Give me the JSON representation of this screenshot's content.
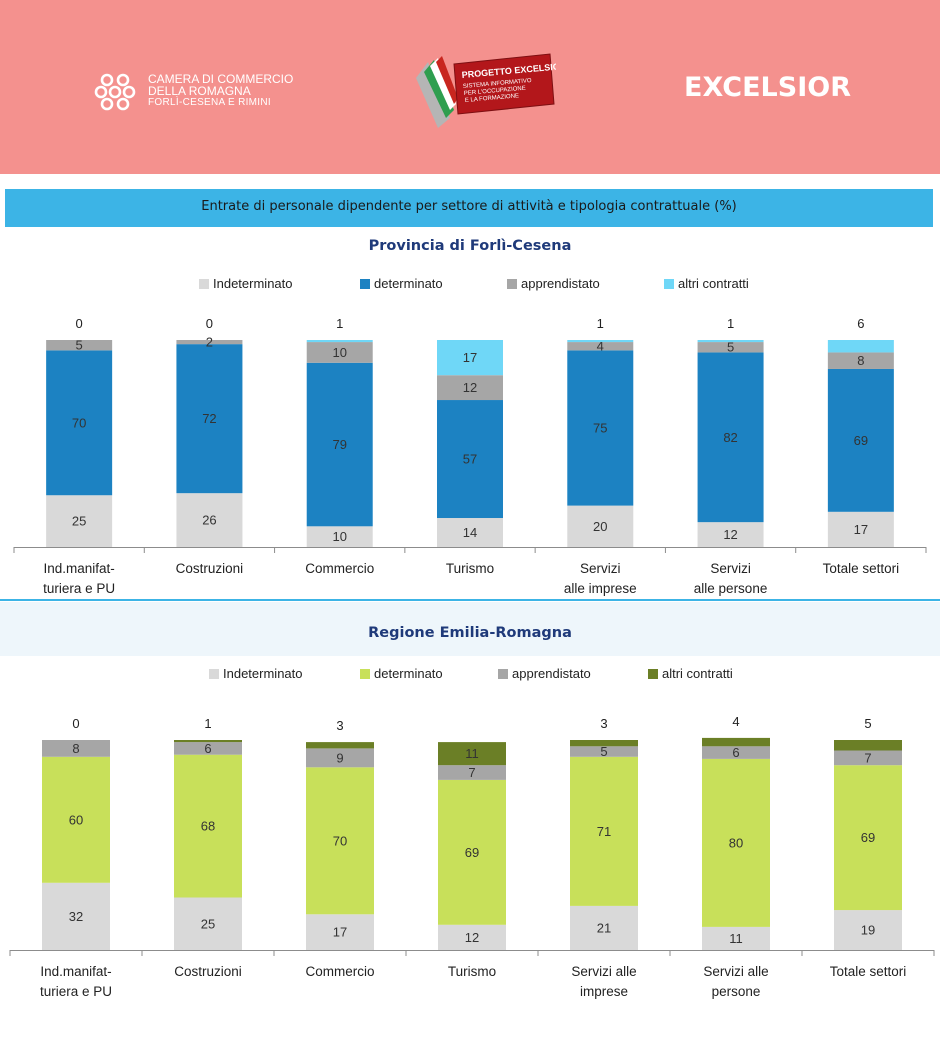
{
  "header": {
    "camera_line1": "CAMERA DI COMMERCIO",
    "camera_line2": "DELLA ROMAGNA",
    "camera_line3": "FORLÌ-CESENA E RIMINI",
    "excelsior_logo_title": "PROGETTO EXCELSIOR",
    "excelsior_logo_sub1": "SISTEMA INFORMATIVO",
    "excelsior_logo_sub2": "PER L'OCCUPAZIONE",
    "excelsior_logo_sub3": "E LA FORMAZIONE",
    "brand": "EXCELSIOR",
    "colors": {
      "header_bg": "#f4918e",
      "banner_bg": "#3cb4e6",
      "title_blue": "#1f3a7a"
    }
  },
  "banner": {
    "text": "Entrate di personale dipendente per settore di attività e tipologia contrattuale (%)"
  },
  "chart_data": [
    {
      "type": "bar",
      "stacked": true,
      "title": "Provincia di Forlì-Cesena",
      "categories": [
        [
          "Ind.manifat-",
          "turiera e PU"
        ],
        [
          "Costruzioni"
        ],
        [
          "Commercio"
        ],
        [
          "Turismo"
        ],
        [
          "Servizi",
          "alle imprese"
        ],
        [
          "Servizi",
          "alle persone"
        ],
        [
          "Totale settori"
        ]
      ],
      "ylim": [
        0,
        100
      ],
      "legend_position": "top",
      "series": [
        {
          "name": "Indeterminato",
          "color": "#d9d9d9",
          "values": [
            25,
            26,
            10,
            14,
            20,
            12,
            17
          ]
        },
        {
          "name": "determinato",
          "color": "#1c82c2",
          "values": [
            70,
            72,
            79,
            57,
            75,
            82,
            69
          ]
        },
        {
          "name": "apprendistato",
          "color": "#a6a6a6",
          "values": [
            5,
            2,
            10,
            12,
            4,
            5,
            8
          ]
        },
        {
          "name": "altri contratti",
          "color": "#6fd7f7",
          "values": [
            0,
            0,
            1,
            17,
            1,
            1,
            6
          ]
        }
      ]
    },
    {
      "type": "bar",
      "stacked": true,
      "title": "Regione Emilia-Romagna",
      "categories": [
        [
          "Ind.manifat-",
          "turiera e PU"
        ],
        [
          "Costruzioni"
        ],
        [
          "Commercio"
        ],
        [
          "Turismo"
        ],
        [
          "Servizi alle",
          "imprese"
        ],
        [
          "Servizi alle",
          "persone"
        ],
        [
          "Totale settori"
        ]
      ],
      "ylim": [
        0,
        100
      ],
      "legend_position": "top",
      "series": [
        {
          "name": "Indeterminato",
          "color": "#d9d9d9",
          "values": [
            32,
            25,
            17,
            12,
            21,
            11,
            19
          ]
        },
        {
          "name": "determinato",
          "color": "#c8e05a",
          "values": [
            60,
            68,
            70,
            69,
            71,
            80,
            69
          ]
        },
        {
          "name": "apprendistato",
          "color": "#a6a6a6",
          "values": [
            8,
            6,
            9,
            7,
            5,
            6,
            7
          ]
        },
        {
          "name": "altri contratti",
          "color": "#6b7f26",
          "values": [
            0,
            1,
            3,
            11,
            3,
            4,
            5
          ]
        }
      ]
    }
  ]
}
